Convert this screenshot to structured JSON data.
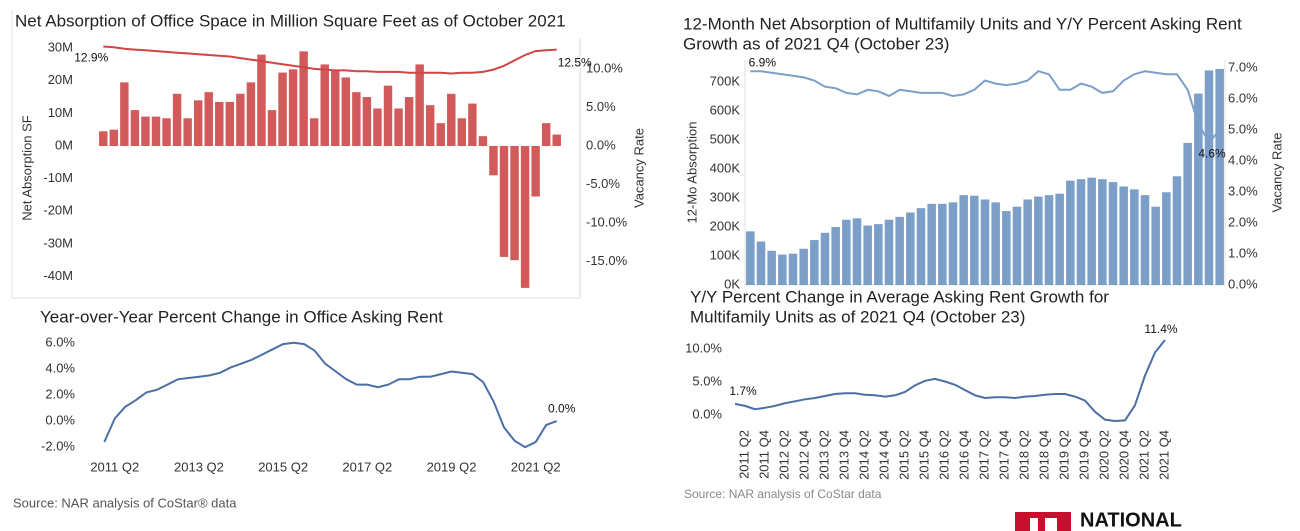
{
  "chart_data": [
    {
      "type": "combo",
      "title": "Net Absorption of Office Space in Million Square Feet as of October 2021",
      "y_label": "Net Absorption SF",
      "y2_label": "Vacancy Rate",
      "categories": [
        null,
        null,
        null,
        null,
        null,
        null,
        null,
        null,
        null,
        null,
        null,
        null,
        null,
        null,
        null,
        null,
        null,
        null,
        null,
        null,
        null,
        null,
        null,
        null,
        null,
        null,
        null,
        null,
        null,
        null,
        null,
        null,
        null,
        null,
        null,
        null,
        null,
        null,
        null,
        null,
        null,
        null,
        null,
        null
      ],
      "ylim": [
        -46.6,
        33.1
      ],
      "yticks": [
        {
          "value": 30,
          "label": "30M"
        },
        {
          "value": 20,
          "label": "20M"
        },
        {
          "value": 10,
          "label": "10M"
        },
        {
          "value": 0,
          "label": "0M"
        },
        {
          "value": -10,
          "label": "-10M"
        },
        {
          "value": -20,
          "label": "-20M"
        },
        {
          "value": -30,
          "label": "-30M"
        },
        {
          "value": -40,
          "label": "-40M"
        }
      ],
      "y2lim": [
        -19.7,
        14.0
      ],
      "y2ticks": [
        {
          "value": 10,
          "label": "10.0%"
        },
        {
          "value": 5,
          "label": "5.0%"
        },
        {
          "value": 0,
          "label": "0.0%"
        },
        {
          "value": -5,
          "label": "-5.0%"
        },
        {
          "value": -10,
          "label": "-10.0%"
        },
        {
          "value": -15,
          "label": "-15.0%"
        }
      ],
      "series": [
        {
          "type": "bar",
          "color": "#d25a5a",
          "values": [
            4.5,
            5,
            19.5,
            11,
            9,
            9,
            8.5,
            16,
            8.5,
            14,
            16.5,
            13.5,
            13.5,
            16,
            19.5,
            28,
            11,
            22.5,
            23.5,
            29,
            8.5,
            25,
            23,
            21,
            16.5,
            15,
            11.5,
            18.5,
            11.5,
            15,
            25,
            12.5,
            7,
            16,
            8.5,
            13,
            3,
            -9,
            -34,
            -35,
            -43.5,
            -15.5,
            7,
            3.5
          ]
        },
        {
          "type": "line",
          "axis": "y2",
          "color": "#d04545",
          "values": [
            12.9,
            12.8,
            12.6,
            12.5,
            12.4,
            12.3,
            12.2,
            12.1,
            12.0,
            11.9,
            11.8,
            11.7,
            11.6,
            11.4,
            11.2,
            11.0,
            10.8,
            10.6,
            10.4,
            10.2,
            10.0,
            9.9,
            9.8,
            9.8,
            9.7,
            9.7,
            9.6,
            9.6,
            9.6,
            9.5,
            9.5,
            9.5,
            9.5,
            9.4,
            9.5,
            9.5,
            9.6,
            9.9,
            10.4,
            11.1,
            11.8,
            12.3,
            12.4,
            12.5
          ],
          "value_labels": [
            "12.9%",
            null,
            null,
            null,
            null,
            null,
            null,
            null,
            null,
            null,
            null,
            null,
            null,
            null,
            null,
            null,
            null,
            null,
            null,
            null,
            null,
            null,
            null,
            null,
            null,
            null,
            null,
            null,
            null,
            null,
            null,
            null,
            null,
            null,
            null,
            null,
            null,
            null,
            null,
            null,
            null,
            null,
            null,
            "12.5%"
          ]
        }
      ]
    },
    {
      "type": "line",
      "title": "Year-over-Year Percent Change in Office Asking Rent",
      "categories": [
        null,
        "2011 Q2",
        null,
        null,
        null,
        null,
        null,
        null,
        null,
        "2013 Q2",
        null,
        null,
        null,
        null,
        null,
        null,
        null,
        "2015 Q2",
        null,
        null,
        null,
        null,
        null,
        null,
        null,
        "2017 Q2",
        null,
        null,
        null,
        null,
        null,
        null,
        null,
        "2019 Q2",
        null,
        null,
        null,
        null,
        null,
        null,
        null,
        "2021 Q2",
        null,
        null
      ],
      "ylim": [
        -2.6,
        6.6
      ],
      "yticks": [
        {
          "value": 6,
          "label": "6.0%"
        },
        {
          "value": 4,
          "label": "4.0%"
        },
        {
          "value": 2,
          "label": "2.0%"
        },
        {
          "value": 0,
          "label": "0.0%"
        },
        {
          "value": -2,
          "label": "-2.0%"
        }
      ],
      "color": "#4a6fa5",
      "values": [
        -1.6,
        0.2,
        1.1,
        1.6,
        2.2,
        2.4,
        2.8,
        3.2,
        3.3,
        3.4,
        3.5,
        3.7,
        4.1,
        4.4,
        4.7,
        5.1,
        5.5,
        5.9,
        6.0,
        5.9,
        5.4,
        4.4,
        3.8,
        3.2,
        2.8,
        2.8,
        2.6,
        2.8,
        3.2,
        3.2,
        3.4,
        3.4,
        3.6,
        3.8,
        3.7,
        3.6,
        3.0,
        1.5,
        -0.5,
        -1.5,
        -2.0,
        -1.6,
        -0.3,
        0.0
      ],
      "value_labels": [
        null,
        null,
        null,
        null,
        null,
        null,
        null,
        null,
        null,
        null,
        null,
        null,
        null,
        null,
        null,
        null,
        null,
        null,
        null,
        null,
        null,
        null,
        null,
        null,
        null,
        null,
        null,
        null,
        null,
        null,
        null,
        null,
        null,
        null,
        null,
        null,
        null,
        null,
        null,
        null,
        null,
        null,
        null,
        "0.0%"
      ]
    },
    {
      "type": "combo",
      "title": [
        "12-Month Net Absorption of Multifamily Units and Y/Y Percent Asking Rent",
        "Growth as of 2021 Q4 (October 23)"
      ],
      "y_label": "12-Mo Absorption",
      "y2_label": "Vacancy Rate",
      "categories": [
        null,
        null,
        null,
        null,
        null,
        null,
        null,
        null,
        null,
        null,
        null,
        null,
        null,
        null,
        null,
        null,
        null,
        null,
        null,
        null,
        null,
        null,
        null,
        null,
        null,
        null,
        null,
        null,
        null,
        null,
        null,
        null,
        null,
        null,
        null,
        null,
        null,
        null,
        null,
        null,
        null,
        null,
        null,
        null,
        null
      ],
      "ylim": [
        0,
        776000
      ],
      "yticks": [
        {
          "value": 700000,
          "label": "700K"
        },
        {
          "value": 600000,
          "label": "600K"
        },
        {
          "value": 500000,
          "label": "500K"
        },
        {
          "value": 400000,
          "label": "400K"
        },
        {
          "value": 300000,
          "label": "300K"
        },
        {
          "value": 200000,
          "label": "200K"
        },
        {
          "value": 100000,
          "label": "100K"
        },
        {
          "value": 0,
          "label": "0K"
        }
      ],
      "y2lim": [
        0,
        7.26
      ],
      "y2ticks": [
        {
          "value": 7,
          "label": "7.0%"
        },
        {
          "value": 6,
          "label": "6.0%"
        },
        {
          "value": 5,
          "label": "5.0%"
        },
        {
          "value": 4,
          "label": "4.0%"
        },
        {
          "value": 3,
          "label": "3.0%"
        },
        {
          "value": 2,
          "label": "2.0%"
        },
        {
          "value": 1,
          "label": "1.0%"
        },
        {
          "value": 0,
          "label": "0.0%"
        }
      ],
      "series": [
        {
          "type": "bar",
          "color": "#7c9fca",
          "values": [
            185000,
            150000,
            118000,
            105000,
            108000,
            125000,
            155000,
            180000,
            200000,
            225000,
            230000,
            205000,
            210000,
            225000,
            235000,
            250000,
            265000,
            280000,
            280000,
            285000,
            310000,
            308000,
            295000,
            285000,
            255000,
            270000,
            295000,
            305000,
            310000,
            315000,
            360000,
            365000,
            370000,
            365000,
            355000,
            340000,
            330000,
            310000,
            270000,
            320000,
            375000,
            490000,
            660000,
            740000,
            745000
          ]
        },
        {
          "type": "line",
          "axis": "y2",
          "color": "#7c9fca",
          "values": [
            6.9,
            6.9,
            6.85,
            6.8,
            6.75,
            6.7,
            6.6,
            6.4,
            6.35,
            6.2,
            6.15,
            6.3,
            6.25,
            6.1,
            6.3,
            6.25,
            6.2,
            6.2,
            6.2,
            6.1,
            6.15,
            6.3,
            6.6,
            6.5,
            6.45,
            6.5,
            6.6,
            6.9,
            6.8,
            6.3,
            6.3,
            6.5,
            6.4,
            6.2,
            6.25,
            6.6,
            6.8,
            6.9,
            6.85,
            6.8,
            6.8,
            6.3,
            5.2,
            4.6,
            5.0
          ],
          "value_labels": [
            "6.9%",
            null,
            null,
            null,
            null,
            null,
            null,
            null,
            null,
            null,
            null,
            null,
            null,
            null,
            null,
            null,
            null,
            null,
            null,
            null,
            null,
            null,
            null,
            null,
            null,
            null,
            null,
            null,
            null,
            null,
            null,
            null,
            null,
            null,
            null,
            null,
            null,
            null,
            null,
            null,
            null,
            null,
            null,
            "4.6%",
            null
          ]
        }
      ]
    },
    {
      "type": "line",
      "title": [
        "Y/Y Percent Change in Average Asking Rent Growth for",
        "Multifamily Units as of 2021 Q4 (October 23)"
      ],
      "categories": [
        null,
        "2011 Q2",
        null,
        "2011 Q4",
        null,
        "2012 Q2",
        null,
        "2012 Q4",
        null,
        "2013 Q2",
        null,
        "2013 Q4",
        null,
        "2014 Q2",
        null,
        "2014 Q4",
        null,
        "2015 Q2",
        null,
        "2015 Q4",
        null,
        "2016 Q2",
        null,
        "2016 Q4",
        null,
        "2017 Q2",
        null,
        "2017 Q4",
        null,
        "2018 Q2",
        null,
        "2018 Q4",
        null,
        "2019 Q2",
        null,
        "2019 Q4",
        null,
        "2020 Q2",
        null,
        "2020 Q4",
        null,
        "2021 Q2",
        null,
        "2021 Q4"
      ],
      "ylim": [
        -1.2,
        11.7
      ],
      "yticks": [
        {
          "value": 10,
          "label": "10.0%"
        },
        {
          "value": 5,
          "label": "5.0%"
        },
        {
          "value": 0,
          "label": "0.0%"
        }
      ],
      "color": "#4a6fa5",
      "values": [
        1.7,
        1.4,
        0.9,
        1.1,
        1.4,
        1.8,
        2.1,
        2.4,
        2.6,
        2.9,
        3.2,
        3.3,
        3.3,
        3.1,
        3.0,
        2.8,
        3.0,
        3.5,
        4.5,
        5.2,
        5.5,
        5.1,
        4.6,
        3.8,
        3.0,
        2.6,
        2.7,
        2.7,
        2.6,
        2.8,
        2.9,
        3.1,
        3.2,
        3.2,
        2.8,
        2.2,
        0.5,
        -0.7,
        -0.9,
        -0.8,
        1.5,
        6.0,
        9.5,
        11.4
      ],
      "value_labels": [
        "1.7%",
        null,
        null,
        null,
        null,
        null,
        null,
        null,
        null,
        null,
        null,
        null,
        null,
        null,
        null,
        null,
        null,
        null,
        null,
        null,
        null,
        null,
        null,
        null,
        null,
        null,
        null,
        null,
        null,
        null,
        null,
        null,
        null,
        null,
        null,
        null,
        null,
        null,
        null,
        null,
        null,
        null,
        null,
        "11.4%"
      ]
    }
  ],
  "footer": {
    "left_source": "Source: NAR analysis of CoStar® data",
    "right_source": "Source: NAR analysis of CoStar data",
    "logo": "NATIONAL"
  }
}
